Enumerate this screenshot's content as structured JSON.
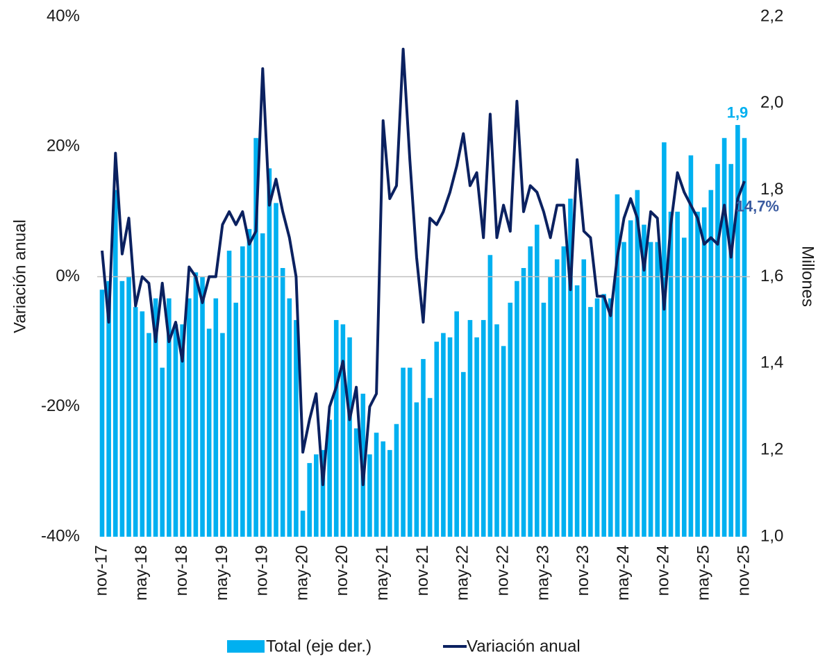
{
  "chart_data": {
    "type": "combo",
    "y_label": "Variación anual",
    "y2_label": "Millones",
    "categories": [
      "nov-17",
      null,
      null,
      null,
      null,
      null,
      "may-18",
      null,
      null,
      null,
      null,
      null,
      "nov-18",
      null,
      null,
      null,
      null,
      null,
      "may-19",
      null,
      null,
      null,
      null,
      null,
      "nov-19",
      null,
      null,
      null,
      null,
      null,
      "may-20",
      null,
      null,
      null,
      null,
      null,
      "nov-20",
      null,
      null,
      null,
      null,
      null,
      "may-21",
      null,
      null,
      null,
      null,
      null,
      "nov-21",
      null,
      null,
      null,
      null,
      null,
      "may-22",
      null,
      null,
      null,
      null,
      null,
      "nov-22",
      null,
      null,
      null,
      null,
      null,
      "may-23",
      null,
      null,
      null,
      null,
      null,
      "nov-23",
      null,
      null,
      null,
      null,
      null,
      "may-24",
      null,
      null,
      null,
      null,
      null,
      "nov-24",
      null,
      null,
      null,
      null,
      null,
      "may-25",
      null,
      null,
      null,
      null,
      null,
      "nov-25"
    ],
    "series": [
      {
        "name": "Total (eje der.)",
        "type": "bar",
        "axis": "y2",
        "color": "#00b0f0",
        "values": [
          1.57,
          1.59,
          1.8,
          1.59,
          1.6,
          1.53,
          1.52,
          1.47,
          1.55,
          1.39,
          1.55,
          1.49,
          1.49,
          1.55,
          1.61,
          1.6,
          1.48,
          1.55,
          1.47,
          1.66,
          1.54,
          1.67,
          1.71,
          1.92,
          1.7,
          1.85,
          1.77,
          1.62,
          1.55,
          1.5,
          1.06,
          1.17,
          1.19,
          1.2,
          1.27,
          1.5,
          1.49,
          1.46,
          1.25,
          1.33,
          1.19,
          1.24,
          1.22,
          1.2,
          1.26,
          1.39,
          1.39,
          1.31,
          1.41,
          1.32,
          1.45,
          1.47,
          1.46,
          1.52,
          1.38,
          1.5,
          1.46,
          1.5,
          1.65,
          1.49,
          1.44,
          1.54,
          1.59,
          1.62,
          1.67,
          1.72,
          1.54,
          1.6,
          1.64,
          1.67,
          1.78,
          1.58,
          1.64,
          1.53,
          1.55,
          1.56,
          1.55,
          1.79,
          1.68,
          1.73,
          1.8,
          1.72,
          1.68,
          1.68,
          1.91,
          1.75,
          1.75,
          1.69,
          1.88,
          1.75,
          1.76,
          1.8,
          1.86,
          1.92,
          1.86,
          1.95,
          1.92
        ],
        "value_labels": [
          null,
          null,
          null,
          null,
          null,
          null,
          null,
          null,
          null,
          null,
          null,
          null,
          null,
          null,
          null,
          null,
          null,
          null,
          null,
          null,
          null,
          null,
          null,
          null,
          null,
          null,
          null,
          null,
          null,
          null,
          null,
          null,
          null,
          null,
          null,
          null,
          null,
          null,
          null,
          null,
          null,
          null,
          null,
          null,
          null,
          null,
          null,
          null,
          null,
          null,
          null,
          null,
          null,
          null,
          null,
          null,
          null,
          null,
          null,
          null,
          null,
          null,
          null,
          null,
          null,
          null,
          null,
          null,
          null,
          null,
          null,
          null,
          null,
          null,
          null,
          null,
          null,
          null,
          null,
          null,
          null,
          null,
          null,
          null,
          null,
          null,
          null,
          null,
          null,
          null,
          null,
          null,
          null,
          null,
          null,
          null,
          "1,9"
        ]
      },
      {
        "name": "Variación anual",
        "type": "line",
        "color": "#0b2160",
        "values": [
          4,
          -7,
          19,
          3.5,
          9,
          -4.5,
          0,
          -1,
          -10,
          -1,
          -10,
          -7,
          -13,
          1.5,
          0,
          -4,
          0,
          0,
          8,
          10,
          8,
          10,
          5,
          7,
          32,
          11,
          15,
          10,
          6,
          0,
          -27,
          -22,
          -18,
          -32,
          -20,
          -17,
          -13,
          -22,
          -17,
          -32,
          -20,
          -18,
          24,
          12,
          14,
          35,
          18,
          3,
          -7,
          9,
          8,
          10,
          13,
          17,
          22,
          14,
          16,
          6,
          25,
          6,
          11,
          7,
          27,
          10,
          14,
          13,
          10,
          6,
          11,
          11,
          -2,
          18,
          7,
          6,
          -3,
          -3,
          -6,
          3,
          9,
          12,
          9,
          1,
          10,
          9,
          -5,
          8,
          16,
          13,
          11,
          9,
          5,
          6,
          5,
          11,
          3,
          12,
          14.7
        ],
        "value_labels": [
          null,
          null,
          null,
          null,
          null,
          null,
          null,
          null,
          null,
          null,
          null,
          null,
          null,
          null,
          null,
          null,
          null,
          null,
          null,
          null,
          null,
          null,
          null,
          null,
          null,
          null,
          null,
          null,
          null,
          null,
          null,
          null,
          null,
          null,
          null,
          null,
          null,
          null,
          null,
          null,
          null,
          null,
          null,
          null,
          null,
          null,
          null,
          null,
          null,
          null,
          null,
          null,
          null,
          null,
          null,
          null,
          null,
          null,
          null,
          null,
          null,
          null,
          null,
          null,
          null,
          null,
          null,
          null,
          null,
          null,
          null,
          null,
          null,
          null,
          null,
          null,
          null,
          null,
          null,
          null,
          null,
          null,
          null,
          null,
          null,
          null,
          null,
          null,
          null,
          null,
          null,
          null,
          null,
          null,
          null,
          null,
          "14,7%"
        ]
      }
    ],
    "ylim": [
      -40,
      40
    ],
    "yticks": [
      {
        "value": -40,
        "label": "-40%"
      },
      {
        "value": -20,
        "label": "-20%"
      },
      {
        "value": 0,
        "label": "0%"
      },
      {
        "value": 20,
        "label": "20%"
      },
      {
        "value": 40,
        "label": "40%"
      }
    ],
    "y2lim": [
      1,
      2.2
    ],
    "y2ticks": [
      {
        "value": 1,
        "label": "1,0"
      },
      {
        "value": 1.2,
        "label": "1,2"
      },
      {
        "value": 1.4,
        "label": "1,4"
      },
      {
        "value": 1.6,
        "label": "1,6"
      },
      {
        "value": 1.8,
        "label": "1,8"
      },
      {
        "value": 2,
        "label": "2,0"
      },
      {
        "value": 2.2,
        "label": "2,2"
      }
    ],
    "zero_line": true
  }
}
